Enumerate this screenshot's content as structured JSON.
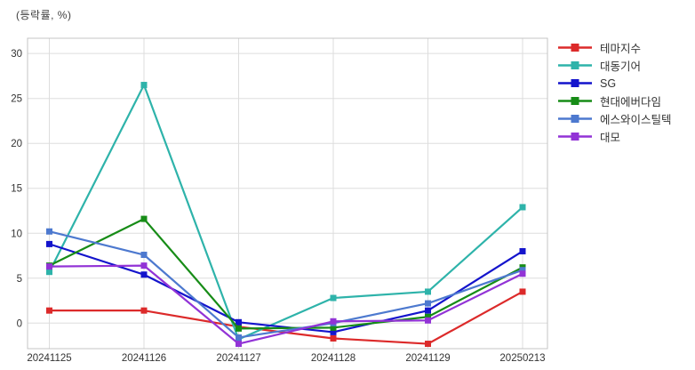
{
  "title": "(등락률, %)",
  "chart_data": {
    "type": "line",
    "x": [
      "20241125",
      "20241126",
      "20241127",
      "20241128",
      "20241129",
      "20250213"
    ],
    "series": [
      {
        "name": "테마지수",
        "color": "#dc2a2a",
        "values": [
          1.4,
          1.4,
          -0.4,
          -1.7,
          -2.3,
          3.5
        ]
      },
      {
        "name": "대동기어",
        "color": "#2eb3aa",
        "values": [
          5.7,
          26.5,
          -1.8,
          2.8,
          3.5,
          12.9
        ]
      },
      {
        "name": "SG",
        "color": "#1414cc",
        "values": [
          8.8,
          5.4,
          0.1,
          -1.0,
          1.4,
          8.0
        ]
      },
      {
        "name": "현대에버다임",
        "color": "#178c17",
        "values": [
          6.4,
          11.6,
          -0.6,
          -0.5,
          0.7,
          6.2
        ]
      },
      {
        "name": "에스와이스틸텍",
        "color": "#4d79cf",
        "values": [
          10.2,
          7.6,
          -1.6,
          0.0,
          2.2,
          5.9
        ]
      },
      {
        "name": "대모",
        "color": "#9233d6",
        "values": [
          6.3,
          6.4,
          -2.3,
          0.2,
          0.3,
          5.5
        ]
      }
    ],
    "yticks": [
      0,
      5,
      10,
      15,
      20,
      25,
      30
    ],
    "ylim": [
      -2.84,
      31.7
    ],
    "ylabel": "(등락률, %)",
    "grid": true,
    "legend_position": "right",
    "marker": "square",
    "colors": {
      "grid": "#dddddd",
      "border": "#c4c4c4",
      "tick_text": "#333333"
    }
  }
}
